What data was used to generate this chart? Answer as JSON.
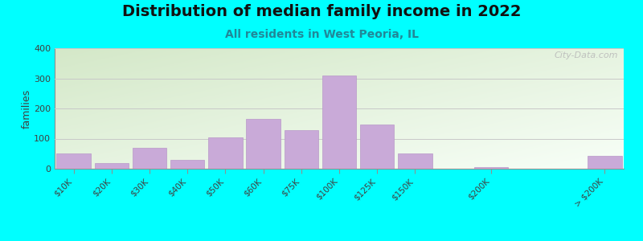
{
  "title": "Distribution of median family income in 2022",
  "subtitle": "All residents in West Peoria, IL",
  "ylabel": "families",
  "categories": [
    "$10K",
    "$20K",
    "$30K",
    "$40K",
    "$50K",
    "$60K",
    "$75K",
    "$100K",
    "$125K",
    "$150K",
    "$200K",
    "> $200K"
  ],
  "values": [
    50,
    18,
    70,
    30,
    105,
    165,
    128,
    310,
    148,
    52,
    5,
    42
  ],
  "bar_color": "#c9aad8",
  "bar_edge_color": "#b898c8",
  "background_top_left": "#d4e8c8",
  "background_bottom_right": "#f0f8f0",
  "outer_background": "#00ffff",
  "ylim": [
    0,
    400
  ],
  "yticks": [
    0,
    100,
    200,
    300,
    400
  ],
  "title_fontsize": 14,
  "subtitle_fontsize": 10,
  "subtitle_color": "#208898",
  "watermark": "City-Data.com",
  "positions": [
    0,
    1,
    2,
    3,
    4,
    5,
    6,
    7,
    8,
    9,
    11,
    14
  ],
  "bar_width": 0.9
}
